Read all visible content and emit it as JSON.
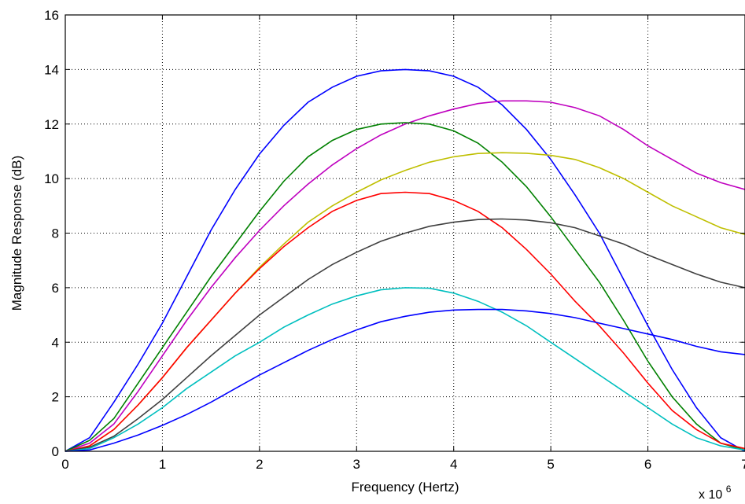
{
  "chart_data": {
    "type": "line",
    "title": "",
    "xlabel": "Frequency (Hertz)",
    "ylabel": "Magnitude Response (dB)",
    "x_exponent_label": "x 10",
    "x_exponent_power": "6",
    "xlim": [
      0,
      7
    ],
    "ylim": [
      0,
      16
    ],
    "x_ticks": [
      0,
      1,
      2,
      3,
      4,
      5,
      6,
      7
    ],
    "y_ticks": [
      0,
      2,
      4,
      6,
      8,
      10,
      12,
      14,
      16
    ],
    "x_tick_labels": [
      "0",
      "1",
      "2",
      "3",
      "4",
      "5",
      "6",
      "7"
    ],
    "y_tick_labels": [
      "0",
      "2",
      "4",
      "6",
      "8",
      "10",
      "12",
      "14",
      "16"
    ],
    "grid": true,
    "legend": "none",
    "x": [
      0,
      0.25,
      0.5,
      0.75,
      1.0,
      1.25,
      1.5,
      1.75,
      2.0,
      2.25,
      2.5,
      2.75,
      3.0,
      3.25,
      3.5,
      3.75,
      4.0,
      4.25,
      4.5,
      4.75,
      5.0,
      5.25,
      5.5,
      5.75,
      6.0,
      6.25,
      6.5,
      6.75,
      7.0
    ],
    "series": [
      {
        "color": "#0000ff",
        "values": [
          0,
          0.5,
          1.8,
          3.2,
          4.7,
          6.4,
          8.1,
          9.6,
          10.9,
          11.95,
          12.8,
          13.35,
          13.75,
          13.95,
          14.0,
          13.95,
          13.75,
          13.35,
          12.7,
          11.8,
          10.7,
          9.4,
          8.0,
          6.3,
          4.6,
          3.0,
          1.6,
          0.5,
          0.0
        ]
      },
      {
        "color": "#bf00bf",
        "values": [
          0,
          0.3,
          1.0,
          2.2,
          3.5,
          4.8,
          6.0,
          7.1,
          8.1,
          9.0,
          9.8,
          10.5,
          11.1,
          11.6,
          12.0,
          12.3,
          12.55,
          12.75,
          12.85,
          12.85,
          12.8,
          12.6,
          12.3,
          11.8,
          11.2,
          10.7,
          10.2,
          9.85,
          9.6
        ]
      },
      {
        "color": "#008000",
        "values": [
          0,
          0.4,
          1.2,
          2.5,
          3.8,
          5.1,
          6.4,
          7.6,
          8.8,
          9.9,
          10.8,
          11.4,
          11.8,
          12.0,
          12.05,
          12.0,
          11.75,
          11.3,
          10.6,
          9.7,
          8.6,
          7.4,
          6.2,
          4.8,
          3.3,
          2.0,
          1.0,
          0.3,
          0.05
        ]
      },
      {
        "color": "#bfbf00",
        "values": [
          0,
          0.2,
          0.8,
          1.7,
          2.7,
          3.8,
          4.8,
          5.8,
          6.75,
          7.6,
          8.4,
          9.0,
          9.5,
          9.95,
          10.3,
          10.6,
          10.8,
          10.92,
          10.95,
          10.93,
          10.85,
          10.7,
          10.4,
          10.0,
          9.5,
          9.0,
          8.6,
          8.2,
          7.95
        ]
      },
      {
        "color": "#ff0000",
        "values": [
          0,
          0.2,
          0.8,
          1.7,
          2.7,
          3.8,
          4.8,
          5.8,
          6.7,
          7.5,
          8.2,
          8.8,
          9.2,
          9.45,
          9.5,
          9.45,
          9.2,
          8.8,
          8.2,
          7.4,
          6.5,
          5.5,
          4.6,
          3.6,
          2.5,
          1.5,
          0.8,
          0.3,
          0.1
        ]
      },
      {
        "color": "#404040",
        "values": [
          0,
          0.15,
          0.55,
          1.2,
          1.9,
          2.7,
          3.5,
          4.25,
          5.0,
          5.65,
          6.3,
          6.85,
          7.3,
          7.7,
          8.0,
          8.25,
          8.4,
          8.5,
          8.52,
          8.48,
          8.38,
          8.2,
          7.9,
          7.6,
          7.2,
          6.85,
          6.5,
          6.2,
          6.0
        ]
      },
      {
        "color": "#00bfbf",
        "values": [
          0,
          0.1,
          0.5,
          1.0,
          1.6,
          2.3,
          2.9,
          3.5,
          4.0,
          4.55,
          5.0,
          5.4,
          5.7,
          5.92,
          6.0,
          5.98,
          5.8,
          5.5,
          5.1,
          4.6,
          4.0,
          3.4,
          2.8,
          2.2,
          1.6,
          1.0,
          0.5,
          0.2,
          0.05
        ]
      },
      {
        "color": "#0000ff",
        "values": [
          0,
          0.05,
          0.3,
          0.6,
          0.95,
          1.35,
          1.8,
          2.3,
          2.8,
          3.25,
          3.7,
          4.1,
          4.45,
          4.75,
          4.95,
          5.1,
          5.18,
          5.2,
          5.2,
          5.15,
          5.05,
          4.9,
          4.7,
          4.5,
          4.3,
          4.1,
          3.85,
          3.65,
          3.55
        ]
      }
    ]
  }
}
